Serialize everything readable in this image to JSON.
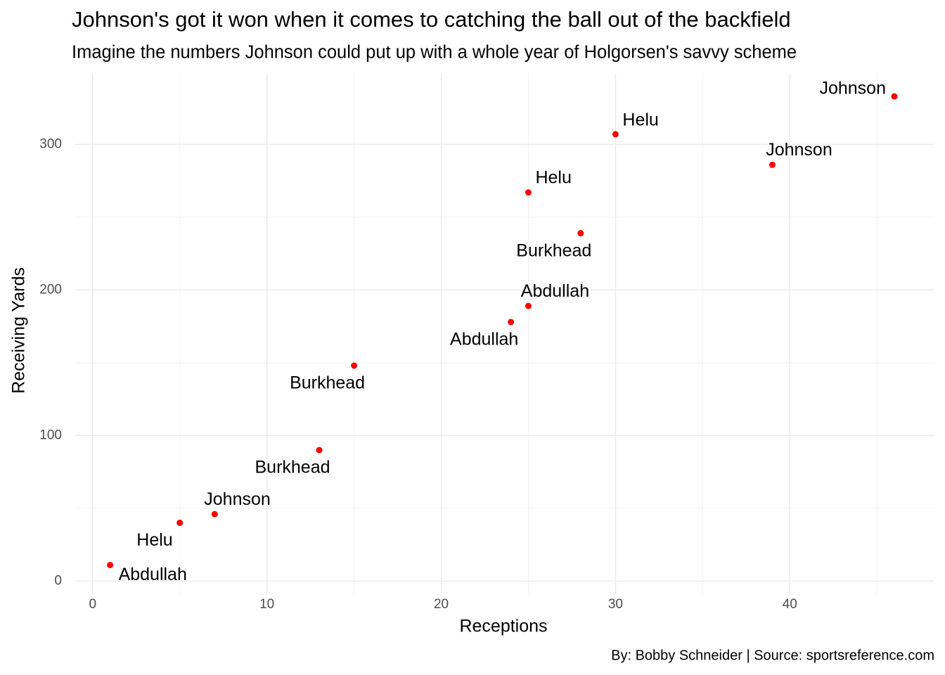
{
  "chart_data": {
    "type": "scatter",
    "title": "Johnson's got it won when it comes to catching the ball out of the backfield",
    "subtitle": "Imagine the numbers Johnson could put up with a whole year of Holgorsen's savvy scheme",
    "caption": "By: Bobby Schneider | Source: sportsreference.com",
    "x_label": "Receptions",
    "y_label": "Receiving Yards",
    "x": [
      1,
      5,
      7,
      13,
      15,
      24,
      25,
      28,
      25,
      30,
      39,
      46
    ],
    "values": [
      11,
      40,
      46,
      90,
      148,
      178,
      189,
      239,
      267,
      307,
      286,
      333
    ],
    "labels": [
      "Abdullah",
      "Helu",
      "Johnson",
      "Burkhead",
      "Burkhead",
      "Abdullah",
      "Abdullah",
      "Burkhead",
      "Helu",
      "Helu",
      "Johnson",
      "Johnson"
    ],
    "color": "#ff0000",
    "xlim": [
      -1,
      48.3
    ],
    "ylim": [
      -9,
      349
    ],
    "xticks": [
      0,
      10,
      20,
      30,
      40
    ],
    "yticks": [
      0,
      100,
      200,
      300
    ],
    "x_minor_ticks": [
      5,
      15,
      25,
      35,
      45
    ],
    "y_minor_ticks": [
      50,
      150,
      250
    ],
    "grid": true
  }
}
